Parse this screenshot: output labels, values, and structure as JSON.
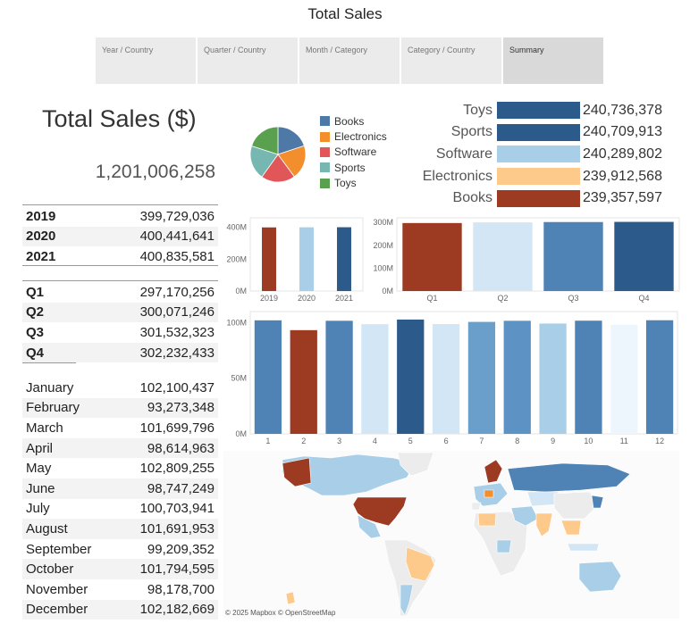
{
  "header": {
    "title": "Total Sales"
  },
  "tabs": [
    {
      "label": "Year / Country",
      "active": false
    },
    {
      "label": "Quarter / Country",
      "active": false
    },
    {
      "label": "Month / Category",
      "active": false
    },
    {
      "label": "Category / Country",
      "active": false
    },
    {
      "label": "Summary",
      "active": true
    }
  ],
  "summary": {
    "title": "Total Sales ($)",
    "total": "1,201,006,258"
  },
  "years": [
    {
      "label": "2019",
      "value": "399,729,036"
    },
    {
      "label": "2020",
      "value": "400,441,641"
    },
    {
      "label": "2021",
      "value": "400,835,581"
    }
  ],
  "quarters": [
    {
      "label": "Q1",
      "value": "297,170,256"
    },
    {
      "label": "Q2",
      "value": "300,071,246"
    },
    {
      "label": "Q3",
      "value": "301,532,323"
    },
    {
      "label": "Q4",
      "value": "302,232,433"
    }
  ],
  "months": [
    {
      "label": "January",
      "value": "102,100,437"
    },
    {
      "label": "February",
      "value": "93,273,348"
    },
    {
      "label": "March",
      "value": "101,699,796"
    },
    {
      "label": "April",
      "value": "98,614,963"
    },
    {
      "label": "May",
      "value": "102,809,255"
    },
    {
      "label": "June",
      "value": "98,747,249"
    },
    {
      "label": "July",
      "value": "100,703,941"
    },
    {
      "label": "August",
      "value": "101,691,953"
    },
    {
      "label": "September",
      "value": "99,209,352"
    },
    {
      "label": "October",
      "value": "101,794,595"
    },
    {
      "label": "November",
      "value": "98,178,700"
    },
    {
      "label": "December",
      "value": "102,182,669"
    }
  ],
  "colors": {
    "books": "#4e79a7",
    "electronics": "#f28e2b",
    "software": "#e15759",
    "sports": "#76b7b2",
    "toys": "#59a14f",
    "rust": "#9c3a22",
    "navy": "#2c5a8a",
    "mid_blue": "#4f83b5",
    "light_blue": "#a9cfe8",
    "pale_blue": "#d2e6f6",
    "peach": "#fdca8b"
  },
  "map": {
    "attribution": "© 2025 Mapbox  © OpenStreetMap"
  },
  "chart_data": [
    {
      "type": "pie",
      "categories": [
        "Books",
        "Electronics",
        "Software",
        "Sports",
        "Toys"
      ],
      "values": [
        239357597,
        239912568,
        240289802,
        240709913,
        240736378
      ],
      "legend": "right"
    },
    {
      "type": "bar",
      "orientation": "horizontal",
      "categories": [
        "Toys",
        "Sports",
        "Software",
        "Electronics",
        "Books"
      ],
      "values": [
        240736378,
        240709913,
        240289802,
        239912568,
        239357597
      ],
      "labels": [
        "240,736,378",
        "240,709,913",
        "240,289,802",
        "239,912,568",
        "239,357,597"
      ]
    },
    {
      "type": "bar",
      "categories": [
        "2019",
        "2020",
        "2021"
      ],
      "values": [
        399729036,
        400441641,
        400835581
      ],
      "yticks": [
        "0M",
        "200M",
        "400M"
      ],
      "ylim": [
        0,
        460000000
      ]
    },
    {
      "type": "bar",
      "categories": [
        "Q1",
        "Q2",
        "Q3",
        "Q4"
      ],
      "values": [
        297170256,
        300071246,
        301532323,
        302232433
      ],
      "yticks": [
        "0M",
        "100M",
        "200M",
        "300M"
      ],
      "ylim": [
        0,
        320000000
      ]
    },
    {
      "type": "bar",
      "categories": [
        "1",
        "2",
        "3",
        "4",
        "5",
        "6",
        "7",
        "8",
        "9",
        "10",
        "11",
        "12"
      ],
      "values": [
        102100437,
        93273348,
        101699796,
        98614963,
        102809255,
        98747249,
        100703941,
        101691953,
        99209352,
        101794595,
        98178700,
        102182669
      ],
      "yticks": [
        "0M",
        "50M",
        "100M"
      ],
      "ylim": [
        0,
        110000000
      ]
    }
  ]
}
